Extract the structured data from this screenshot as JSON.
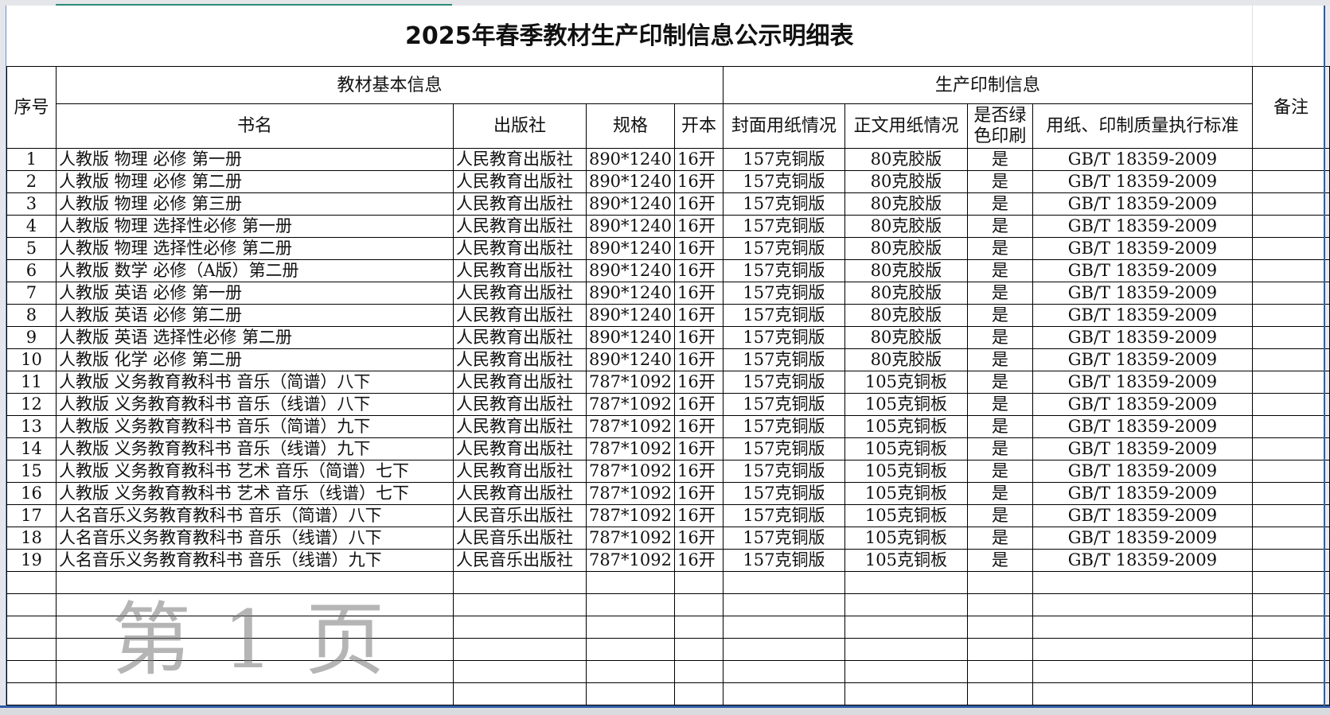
{
  "title": "2025年春季教材生产印制信息公示明细表",
  "headers": {
    "seq": "序号",
    "group_basic": "教材基本信息",
    "group_print": "生产印制信息",
    "remark": "备注",
    "book": "书名",
    "publisher": "出版社",
    "spec": "规格",
    "format": "开本",
    "cover": "封面用纸情况",
    "body": "正文用纸情况",
    "green": "是否绿色印刷",
    "standard": "用纸、印制质量执行标准"
  },
  "rows": [
    [
      "1",
      "人教版 物理 必修 第一册",
      "人民教育出版社",
      "890*1240",
      "16开",
      "157克铜版",
      "80克胶版",
      "是",
      "GB/T 18359-2009",
      ""
    ],
    [
      "2",
      "人教版 物理 必修 第二册",
      "人民教育出版社",
      "890*1240",
      "16开",
      "157克铜版",
      "80克胶版",
      "是",
      "GB/T 18359-2009",
      ""
    ],
    [
      "3",
      "人教版 物理 必修 第三册",
      "人民教育出版社",
      "890*1240",
      "16开",
      "157克铜版",
      "80克胶版",
      "是",
      "GB/T 18359-2009",
      ""
    ],
    [
      "4",
      "人教版 物理 选择性必修 第一册",
      "人民教育出版社",
      "890*1240",
      "16开",
      "157克铜版",
      "80克胶版",
      "是",
      "GB/T 18359-2009",
      ""
    ],
    [
      "5",
      "人教版 物理 选择性必修 第二册",
      "人民教育出版社",
      "890*1240",
      "16开",
      "157克铜版",
      "80克胶版",
      "是",
      "GB/T 18359-2009",
      ""
    ],
    [
      "6",
      "人教版 数学 必修（A版）第二册",
      "人民教育出版社",
      "890*1240",
      "16开",
      "157克铜版",
      "80克胶版",
      "是",
      "GB/T 18359-2009",
      ""
    ],
    [
      "7",
      "人教版 英语 必修 第一册",
      "人民教育出版社",
      "890*1240",
      "16开",
      "157克铜版",
      "80克胶版",
      "是",
      "GB/T 18359-2009",
      ""
    ],
    [
      "8",
      "人教版 英语 必修 第二册",
      "人民教育出版社",
      "890*1240",
      "16开",
      "157克铜版",
      "80克胶版",
      "是",
      "GB/T 18359-2009",
      ""
    ],
    [
      "9",
      "人教版 英语 选择性必修 第二册",
      "人民教育出版社",
      "890*1240",
      "16开",
      "157克铜版",
      "80克胶版",
      "是",
      "GB/T 18359-2009",
      ""
    ],
    [
      "10",
      "人教版 化学 必修 第二册",
      "人民教育出版社",
      "890*1240",
      "16开",
      "157克铜版",
      "80克胶版",
      "是",
      "GB/T 18359-2009",
      ""
    ],
    [
      "11",
      "人教版 义务教育教科书 音乐（简谱）八下",
      "人民教育出版社",
      "787*1092",
      "16开",
      "157克铜版",
      "105克铜板",
      "是",
      "GB/T 18359-2009",
      ""
    ],
    [
      "12",
      "人教版 义务教育教科书 音乐（线谱）八下",
      "人民教育出版社",
      "787*1092",
      "16开",
      "157克铜版",
      "105克铜板",
      "是",
      "GB/T 18359-2009",
      ""
    ],
    [
      "13",
      "人教版 义务教育教科书 音乐（简谱）九下",
      "人民教育出版社",
      "787*1092",
      "16开",
      "157克铜版",
      "105克铜板",
      "是",
      "GB/T 18359-2009",
      ""
    ],
    [
      "14",
      "人教版 义务教育教科书 音乐（线谱）九下",
      "人民教育出版社",
      "787*1092",
      "16开",
      "157克铜版",
      "105克铜板",
      "是",
      "GB/T 18359-2009",
      ""
    ],
    [
      "15",
      "人教版 义务教育教科书 艺术 音乐（简谱）七下",
      "人民教育出版社",
      "787*1092",
      "16开",
      "157克铜版",
      "105克铜板",
      "是",
      "GB/T 18359-2009",
      ""
    ],
    [
      "16",
      "人教版 义务教育教科书 艺术 音乐（线谱）七下",
      "人民教育出版社",
      "787*1092",
      "16开",
      "157克铜版",
      "105克铜板",
      "是",
      "GB/T 18359-2009",
      ""
    ],
    [
      "17",
      "人名音乐义务教育教科书  音乐（简谱）八下",
      "人民音乐出版社",
      "787*1092",
      "16开",
      "157克铜版",
      "105克铜板",
      "是",
      "GB/T 18359-2009",
      ""
    ],
    [
      "18",
      "人名音乐义务教育教科书  音乐（线谱）八下",
      "人民音乐出版社",
      "787*1092",
      "16开",
      "157克铜版",
      "105克铜板",
      "是",
      "GB/T 18359-2009",
      ""
    ],
    [
      "19",
      "人名音乐义务教育教科书  音乐（线谱）九下",
      "人民音乐出版社",
      "787*1092",
      "16开",
      "157克铜版",
      "105克铜板",
      "是",
      "GB/T 18359-2009",
      ""
    ]
  ],
  "empty_rows": 6,
  "watermark": "第1页",
  "colors": {
    "selection": "#2e8b7a",
    "sheet_border": "#2f5ca8"
  }
}
